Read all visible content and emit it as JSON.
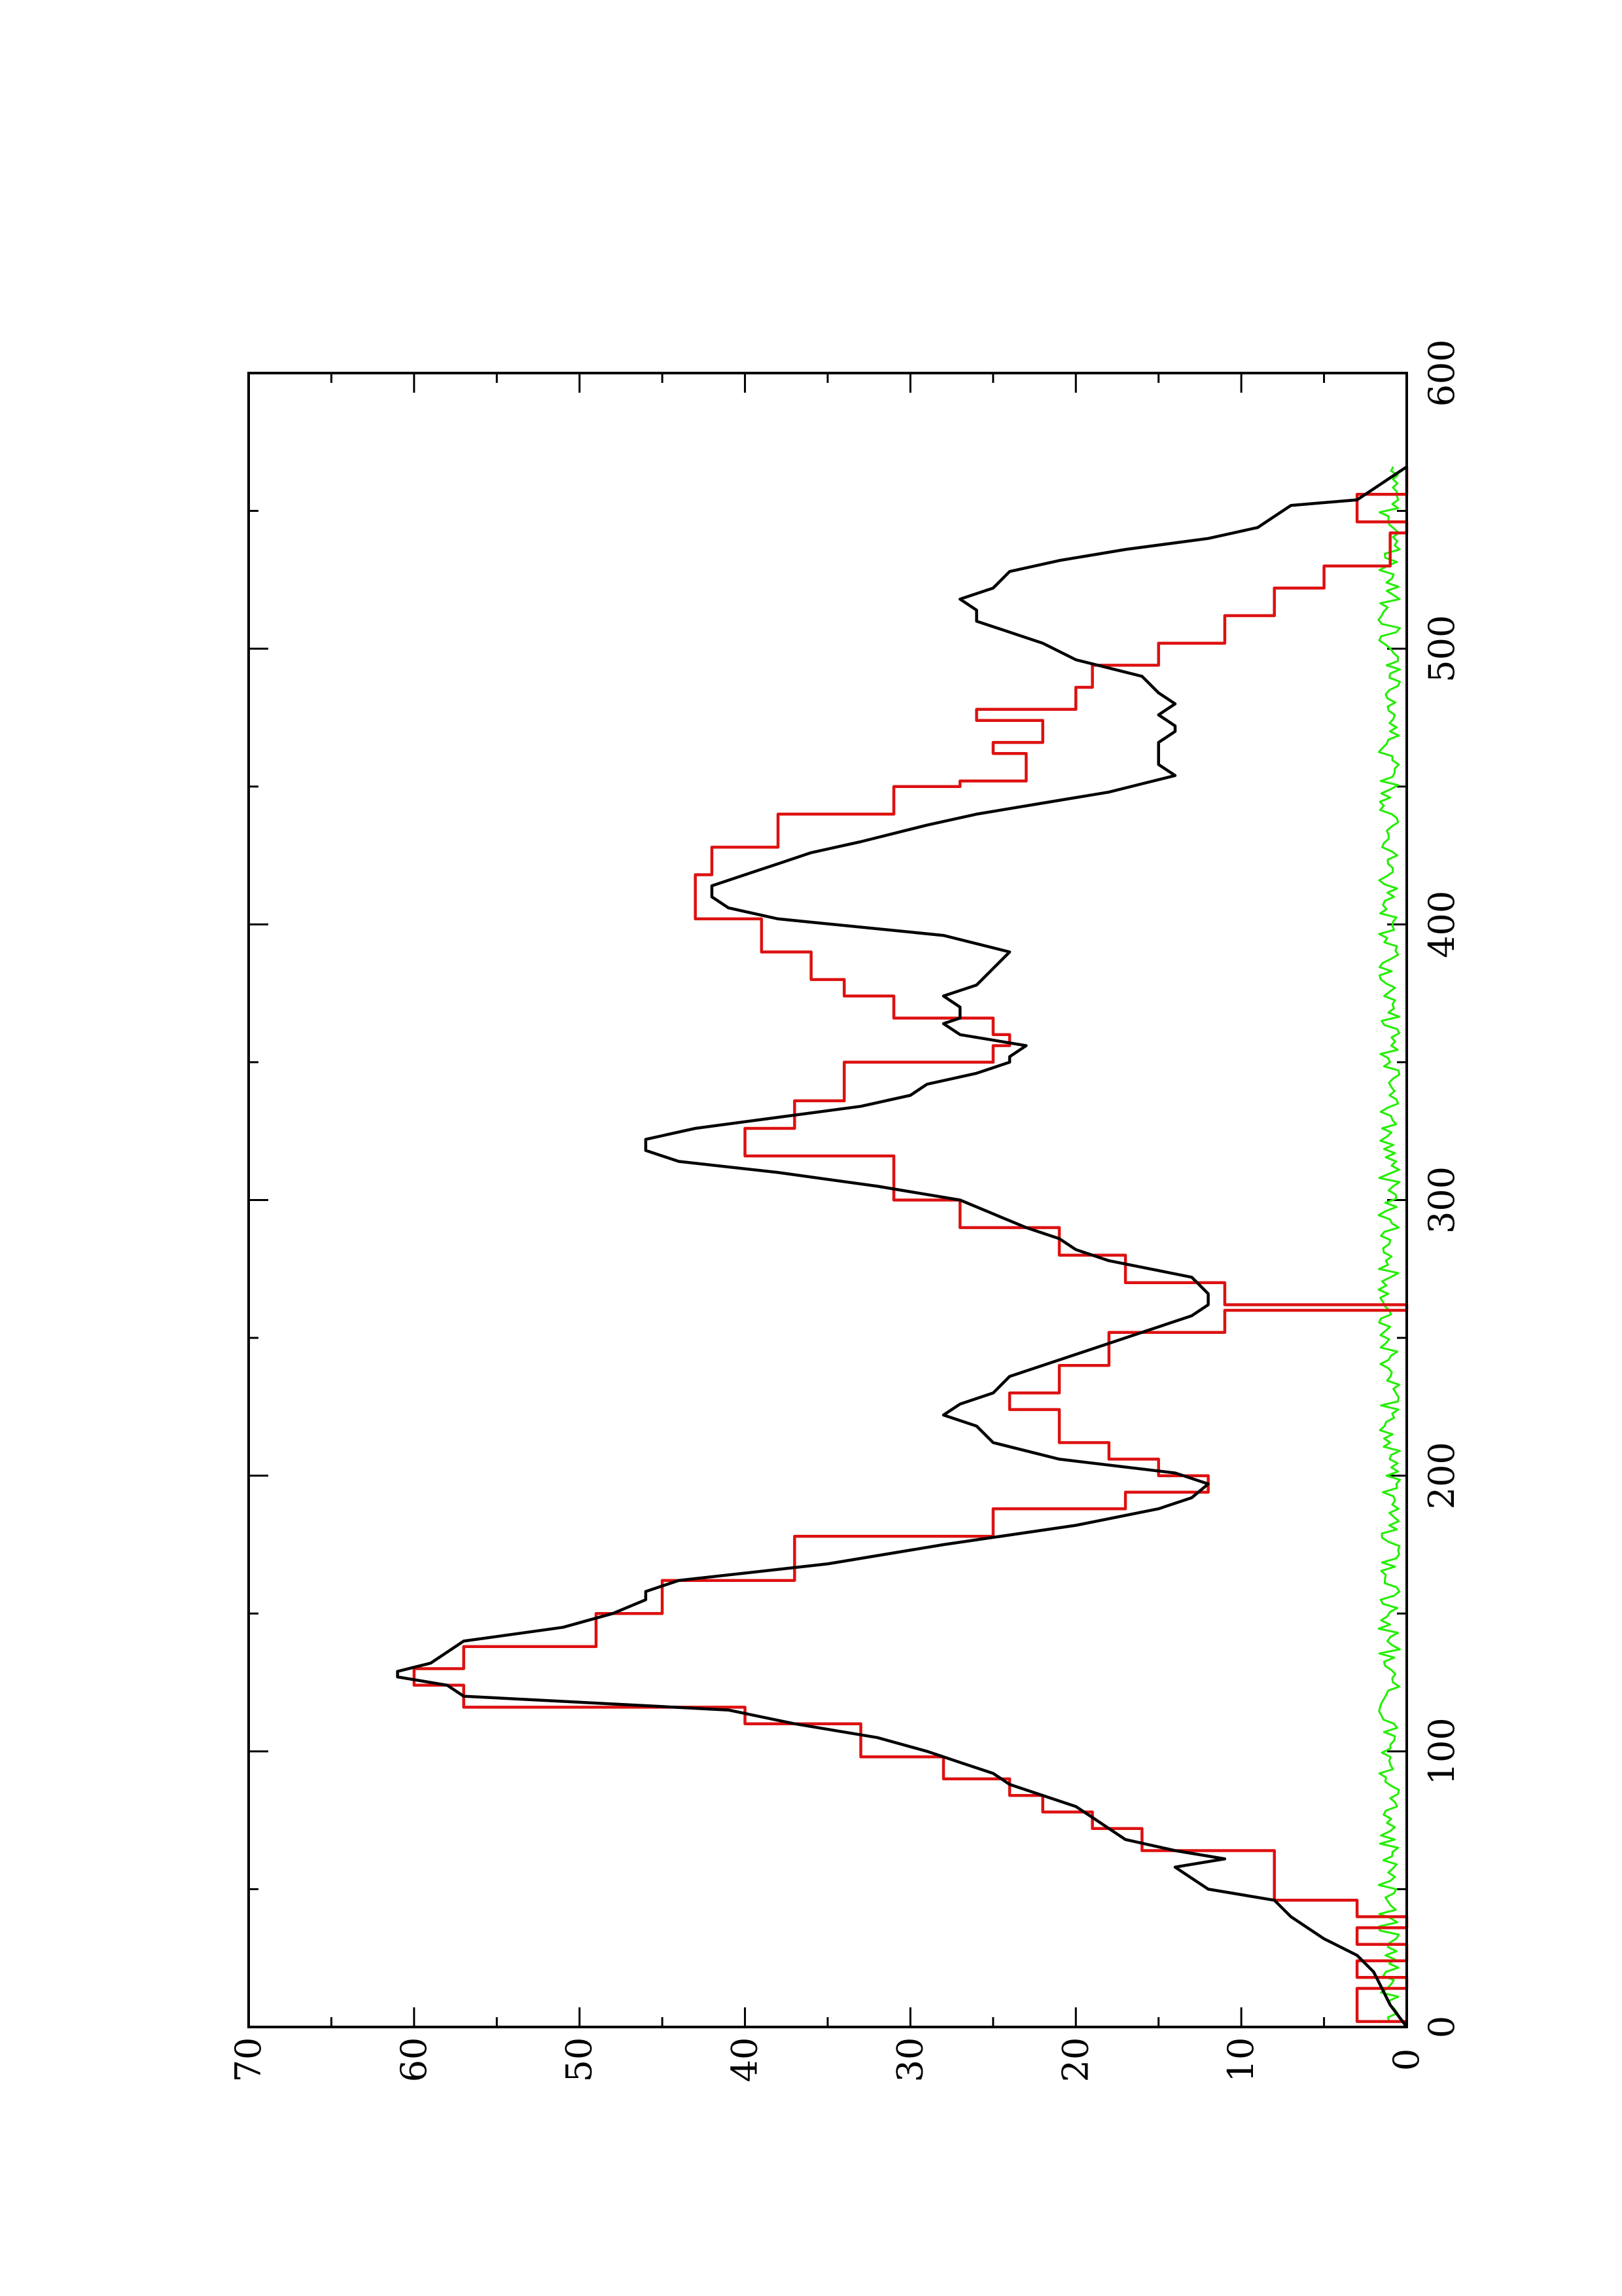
{
  "chart_data": {
    "type": "line",
    "orientation": "rotated-90-ccw",
    "title": "",
    "xlabel": "",
    "ylabel": "",
    "xlim": [
      0,
      600
    ],
    "ylim": [
      0,
      70
    ],
    "x_ticks": [
      0,
      100,
      200,
      300,
      400,
      500,
      600
    ],
    "x_minor_ticks": [
      50,
      150,
      250,
      350,
      450,
      550
    ],
    "y_ticks": [
      0,
      10,
      20,
      30,
      40,
      50,
      60,
      70
    ],
    "y_minor_ticks": [
      5,
      15,
      25,
      35,
      45,
      55,
      65
    ],
    "x_tick_labels": [
      "0",
      "100",
      "200",
      "300",
      "400",
      "500",
      "600"
    ],
    "y_tick_labels": [
      "0",
      "10",
      "20",
      "30",
      "40",
      "50",
      "60",
      "70"
    ],
    "grid": false,
    "legend": "none",
    "series": [
      {
        "color": "#000000",
        "step": false,
        "points": [
          [
            0,
            0
          ],
          [
            8,
            1
          ],
          [
            14,
            1.5
          ],
          [
            20,
            2
          ],
          [
            26,
            3
          ],
          [
            32,
            5
          ],
          [
            36,
            6
          ],
          [
            40,
            7
          ],
          [
            46,
            8
          ],
          [
            50,
            12
          ],
          [
            54,
            13
          ],
          [
            58,
            14
          ],
          [
            61,
            11
          ],
          [
            64,
            14
          ],
          [
            68,
            17
          ],
          [
            72,
            18
          ],
          [
            76,
            19
          ],
          [
            80,
            20
          ],
          [
            84,
            22
          ],
          [
            88,
            24
          ],
          [
            92,
            25
          ],
          [
            96,
            27
          ],
          [
            100,
            29
          ],
          [
            105,
            32
          ],
          [
            110,
            37
          ],
          [
            115,
            41
          ],
          [
            120,
            57
          ],
          [
            124,
            58
          ],
          [
            127,
            61
          ],
          [
            129,
            61
          ],
          [
            132,
            59
          ],
          [
            136,
            58
          ],
          [
            140,
            57
          ],
          [
            145,
            51
          ],
          [
            150,
            48
          ],
          [
            155,
            46
          ],
          [
            158,
            46
          ],
          [
            162,
            44
          ],
          [
            168,
            35
          ],
          [
            175,
            28
          ],
          [
            182,
            20
          ],
          [
            188,
            15
          ],
          [
            192,
            13
          ],
          [
            197,
            12
          ],
          [
            201,
            14
          ],
          [
            206,
            21
          ],
          [
            212,
            25
          ],
          [
            218,
            26
          ],
          [
            222,
            28
          ],
          [
            226,
            27
          ],
          [
            230,
            25
          ],
          [
            236,
            24
          ],
          [
            242,
            21
          ],
          [
            248,
            18
          ],
          [
            254,
            15
          ],
          [
            258,
            13
          ],
          [
            262,
            12
          ],
          [
            266,
            12
          ],
          [
            272,
            13
          ],
          [
            278,
            18
          ],
          [
            282,
            20
          ],
          [
            286,
            21
          ],
          [
            290,
            23
          ],
          [
            295,
            25
          ],
          [
            300,
            27
          ],
          [
            305,
            32
          ],
          [
            310,
            38
          ],
          [
            314,
            44
          ],
          [
            318,
            46
          ],
          [
            322,
            46
          ],
          [
            326,
            43
          ],
          [
            330,
            38
          ],
          [
            334,
            33
          ],
          [
            338,
            30
          ],
          [
            342,
            29
          ],
          [
            346,
            26
          ],
          [
            350,
            24
          ],
          [
            352,
            24
          ],
          [
            356,
            23
          ],
          [
            360,
            27
          ],
          [
            364,
            28
          ],
          [
            366,
            27
          ],
          [
            370,
            27
          ],
          [
            374,
            28
          ],
          [
            378,
            26
          ],
          [
            384,
            25
          ],
          [
            390,
            24
          ],
          [
            396,
            28
          ],
          [
            402,
            38
          ],
          [
            406,
            41
          ],
          [
            410,
            42
          ],
          [
            414,
            42
          ],
          [
            418,
            40
          ],
          [
            422,
            38
          ],
          [
            426,
            36
          ],
          [
            430,
            33
          ],
          [
            436,
            29
          ],
          [
            440,
            26
          ],
          [
            444,
            22
          ],
          [
            448,
            18
          ],
          [
            451,
            16
          ],
          [
            454,
            14
          ],
          [
            458,
            15
          ],
          [
            462,
            15
          ],
          [
            466,
            15
          ],
          [
            470,
            14
          ],
          [
            472,
            14
          ],
          [
            476,
            15
          ],
          [
            480,
            14
          ],
          [
            484,
            15
          ],
          [
            490,
            16
          ],
          [
            496,
            20
          ],
          [
            502,
            22
          ],
          [
            506,
            24
          ],
          [
            510,
            26
          ],
          [
            514,
            26
          ],
          [
            518,
            27
          ],
          [
            522,
            25
          ],
          [
            528,
            24
          ],
          [
            532,
            21
          ],
          [
            536,
            17
          ],
          [
            540,
            12
          ],
          [
            544,
            9
          ],
          [
            548,
            8
          ],
          [
            552,
            7
          ],
          [
            554,
            3
          ],
          [
            558,
            2
          ],
          [
            562,
            1
          ],
          [
            566,
            0
          ]
        ]
      },
      {
        "color": "#dd1111",
        "step": true,
        "points": [
          [
            2,
            0
          ],
          [
            2,
            3
          ],
          [
            14,
            3
          ],
          [
            14,
            0
          ],
          [
            18,
            0
          ],
          [
            18,
            3
          ],
          [
            24,
            3
          ],
          [
            24,
            0
          ],
          [
            30,
            0
          ],
          [
            30,
            3
          ],
          [
            36,
            3
          ],
          [
            36,
            0
          ],
          [
            40,
            0
          ],
          [
            40,
            3
          ],
          [
            46,
            3
          ],
          [
            46,
            8
          ],
          [
            64,
            8
          ],
          [
            64,
            16
          ],
          [
            72,
            16
          ],
          [
            72,
            19
          ],
          [
            78,
            19
          ],
          [
            78,
            22
          ],
          [
            84,
            22
          ],
          [
            84,
            24
          ],
          [
            90,
            24
          ],
          [
            90,
            28
          ],
          [
            98,
            28
          ],
          [
            98,
            33
          ],
          [
            110,
            33
          ],
          [
            110,
            40
          ],
          [
            116,
            40
          ],
          [
            116,
            57
          ],
          [
            124,
            57
          ],
          [
            124,
            60
          ],
          [
            130,
            60
          ],
          [
            130,
            57
          ],
          [
            138,
            57
          ],
          [
            138,
            49
          ],
          [
            150,
            49
          ],
          [
            150,
            45
          ],
          [
            162,
            45
          ],
          [
            162,
            37
          ],
          [
            178,
            37
          ],
          [
            178,
            25
          ],
          [
            188,
            25
          ],
          [
            188,
            17
          ],
          [
            194,
            17
          ],
          [
            194,
            12
          ],
          [
            200,
            12
          ],
          [
            200,
            15
          ],
          [
            206,
            15
          ],
          [
            206,
            18
          ],
          [
            212,
            18
          ],
          [
            212,
            21
          ],
          [
            224,
            21
          ],
          [
            224,
            24
          ],
          [
            230,
            24
          ],
          [
            230,
            21
          ],
          [
            240,
            21
          ],
          [
            240,
            18
          ],
          [
            252,
            18
          ],
          [
            252,
            11
          ],
          [
            260,
            11
          ],
          [
            260,
            0
          ],
          [
            262,
            0
          ],
          [
            262,
            11
          ],
          [
            270,
            11
          ],
          [
            270,
            17
          ],
          [
            280,
            17
          ],
          [
            280,
            21
          ],
          [
            290,
            21
          ],
          [
            290,
            27
          ],
          [
            300,
            27
          ],
          [
            300,
            31
          ],
          [
            316,
            31
          ],
          [
            316,
            40
          ],
          [
            326,
            40
          ],
          [
            326,
            37
          ],
          [
            336,
            37
          ],
          [
            336,
            34
          ],
          [
            350,
            34
          ],
          [
            350,
            25
          ],
          [
            356,
            25
          ],
          [
            356,
            24
          ],
          [
            360,
            24
          ],
          [
            360,
            25
          ],
          [
            366,
            25
          ],
          [
            366,
            31
          ],
          [
            374,
            31
          ],
          [
            374,
            34
          ],
          [
            380,
            34
          ],
          [
            380,
            36
          ],
          [
            390,
            36
          ],
          [
            390,
            39
          ],
          [
            402,
            39
          ],
          [
            402,
            43
          ],
          [
            418,
            43
          ],
          [
            418,
            42
          ],
          [
            428,
            42
          ],
          [
            428,
            38
          ],
          [
            440,
            38
          ],
          [
            440,
            31
          ],
          [
            450,
            31
          ],
          [
            450,
            27
          ],
          [
            452,
            27
          ],
          [
            452,
            23
          ],
          [
            462,
            23
          ],
          [
            462,
            25
          ],
          [
            466,
            25
          ],
          [
            466,
            22
          ],
          [
            474,
            22
          ],
          [
            474,
            26
          ],
          [
            478,
            26
          ],
          [
            478,
            20
          ],
          [
            486,
            20
          ],
          [
            486,
            19
          ],
          [
            494,
            19
          ],
          [
            494,
            15
          ],
          [
            502,
            15
          ],
          [
            502,
            11
          ],
          [
            512,
            11
          ],
          [
            512,
            8
          ],
          [
            522,
            8
          ],
          [
            522,
            5
          ],
          [
            530,
            5
          ],
          [
            530,
            1
          ],
          [
            542,
            1
          ],
          [
            542,
            0
          ],
          [
            546,
            0
          ],
          [
            546,
            3
          ],
          [
            556,
            3
          ],
          [
            556,
            0
          ],
          [
            566,
            0
          ]
        ]
      },
      {
        "color": "#22ee00",
        "step": false,
        "noise": true,
        "x_start": 2,
        "x_end": 566,
        "baseline": 0.8,
        "amplitude": 1.3
      }
    ]
  }
}
